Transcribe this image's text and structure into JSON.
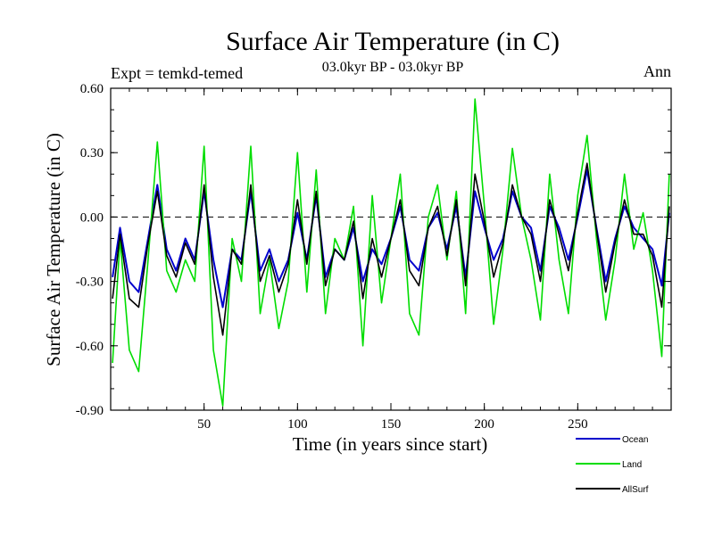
{
  "chart_data": {
    "type": "line",
    "title": "Surface Air Temperature (in C)",
    "subtitle": "03.0kyr BP - 03.0kyr BP",
    "left_label": "Expt = temkd-temed",
    "right_label": "Ann",
    "xlabel": "Time (in years since start)",
    "ylabel": "Surface Air Temperature (in C)",
    "xlim": [
      0,
      300
    ],
    "ylim": [
      -0.9,
      0.6
    ],
    "x_ticks": [
      50,
      100,
      150,
      200,
      250
    ],
    "x_tick_labels": [
      "50",
      "100",
      "150",
      "200",
      "250"
    ],
    "y_ticks": [
      -0.9,
      -0.6,
      -0.3,
      0.0,
      0.3,
      0.6
    ],
    "y_tick_labels": [
      "-0.90",
      "-0.60",
      "-0.30",
      "0.00",
      "0.30",
      "0.60"
    ],
    "reference_line": 0.0,
    "legend_position": "bottom-right",
    "series": [
      {
        "name": "Ocean",
        "color": "#0000cc",
        "x": [
          1,
          5,
          10,
          15,
          20,
          25,
          30,
          35,
          40,
          45,
          50,
          55,
          60,
          65,
          70,
          75,
          80,
          85,
          90,
          95,
          100,
          105,
          110,
          115,
          120,
          125,
          130,
          135,
          140,
          145,
          150,
          155,
          160,
          165,
          170,
          175,
          180,
          185,
          190,
          195,
          200,
          205,
          210,
          215,
          220,
          225,
          230,
          235,
          240,
          245,
          250,
          255,
          260,
          265,
          270,
          275,
          280,
          285,
          290,
          295,
          299
        ],
        "values": [
          -0.28,
          -0.05,
          -0.3,
          -0.35,
          -0.1,
          0.15,
          -0.15,
          -0.25,
          -0.1,
          -0.2,
          0.12,
          -0.2,
          -0.42,
          -0.15,
          -0.2,
          0.12,
          -0.25,
          -0.15,
          -0.3,
          -0.2,
          0.02,
          -0.2,
          0.1,
          -0.28,
          -0.15,
          -0.2,
          -0.05,
          -0.3,
          -0.15,
          -0.22,
          -0.1,
          0.05,
          -0.2,
          -0.25,
          -0.05,
          0.02,
          -0.15,
          0.05,
          -0.28,
          0.12,
          -0.05,
          -0.2,
          -0.1,
          0.12,
          0.0,
          -0.05,
          -0.25,
          0.05,
          -0.05,
          -0.2,
          0.0,
          0.22,
          -0.05,
          -0.3,
          -0.1,
          0.05,
          -0.05,
          -0.1,
          -0.15,
          -0.32,
          0.02
        ]
      },
      {
        "name": "Land",
        "color": "#00dd00",
        "x": [
          1,
          5,
          10,
          15,
          20,
          25,
          30,
          35,
          40,
          45,
          50,
          55,
          60,
          65,
          70,
          75,
          80,
          85,
          90,
          95,
          100,
          105,
          110,
          115,
          120,
          125,
          130,
          135,
          140,
          145,
          150,
          155,
          160,
          165,
          170,
          175,
          180,
          185,
          190,
          195,
          200,
          205,
          210,
          215,
          220,
          225,
          230,
          235,
          240,
          245,
          250,
          255,
          260,
          265,
          270,
          275,
          280,
          285,
          290,
          295,
          299
        ],
        "values": [
          -0.68,
          -0.1,
          -0.62,
          -0.72,
          -0.2,
          0.35,
          -0.25,
          -0.35,
          -0.2,
          -0.3,
          0.33,
          -0.62,
          -0.88,
          -0.1,
          -0.3,
          0.33,
          -0.45,
          -0.2,
          -0.52,
          -0.3,
          0.3,
          -0.35,
          0.22,
          -0.45,
          -0.1,
          -0.2,
          0.05,
          -0.6,
          0.1,
          -0.4,
          -0.1,
          0.2,
          -0.45,
          -0.55,
          0.0,
          0.15,
          -0.2,
          0.12,
          -0.45,
          0.55,
          0.05,
          -0.5,
          -0.15,
          0.32,
          0.0,
          -0.2,
          -0.48,
          0.2,
          -0.2,
          -0.45,
          0.1,
          0.38,
          -0.1,
          -0.48,
          -0.2,
          0.2,
          -0.15,
          0.02,
          -0.25,
          -0.65,
          0.2
        ]
      },
      {
        "name": "AllSurf",
        "color": "#000000",
        "x": [
          1,
          5,
          10,
          15,
          20,
          25,
          30,
          35,
          40,
          45,
          50,
          55,
          60,
          65,
          70,
          75,
          80,
          85,
          90,
          95,
          100,
          105,
          110,
          115,
          120,
          125,
          130,
          135,
          140,
          145,
          150,
          155,
          160,
          165,
          170,
          175,
          180,
          185,
          190,
          195,
          200,
          205,
          210,
          215,
          220,
          225,
          230,
          235,
          240,
          245,
          250,
          255,
          260,
          265,
          270,
          275,
          280,
          285,
          290,
          295,
          299
        ],
        "values": [
          -0.38,
          -0.08,
          -0.38,
          -0.42,
          -0.12,
          0.12,
          -0.18,
          -0.28,
          -0.12,
          -0.22,
          0.15,
          -0.28,
          -0.55,
          -0.15,
          -0.22,
          0.15,
          -0.3,
          -0.18,
          -0.35,
          -0.22,
          0.08,
          -0.22,
          0.12,
          -0.32,
          -0.15,
          -0.2,
          -0.02,
          -0.38,
          -0.1,
          -0.28,
          -0.1,
          0.08,
          -0.25,
          -0.32,
          -0.05,
          0.05,
          -0.18,
          0.08,
          -0.32,
          0.2,
          -0.02,
          -0.28,
          -0.12,
          0.15,
          0.0,
          -0.08,
          -0.3,
          0.08,
          -0.08,
          -0.25,
          0.02,
          0.25,
          -0.06,
          -0.35,
          -0.12,
          0.08,
          -0.08,
          -0.08,
          -0.18,
          -0.42,
          0.05
        ]
      }
    ]
  }
}
